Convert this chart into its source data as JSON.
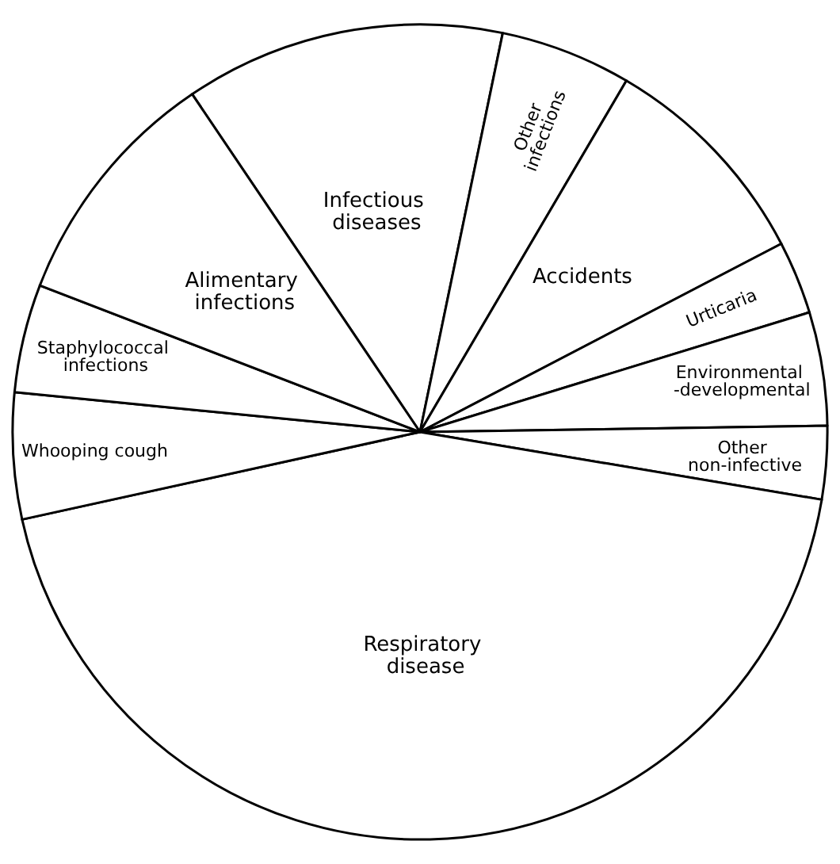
{
  "chart_data": {
    "type": "pie",
    "categories": [
      "Infectious diseases",
      "Other infections",
      "Accidents",
      "Urticaria",
      "Environmental -developmental",
      "Other non-infective",
      "Respiratory disease",
      "Whooping cough",
      "Staphylococcal infections",
      "Alimentary infections"
    ],
    "values": [
      12.7,
      5.2,
      8.9,
      2.9,
      4.5,
      2.9,
      43.9,
      5.0,
      4.3,
      9.7
    ],
    "colors": [
      "#ffffff",
      "#ffffff",
      "#ffffff",
      "#ffffff",
      "#ffffff",
      "#ffffff",
      "#ffffff",
      "#ffffff",
      "#ffffff",
      "#ffffff"
    ],
    "legend": false
  }
}
